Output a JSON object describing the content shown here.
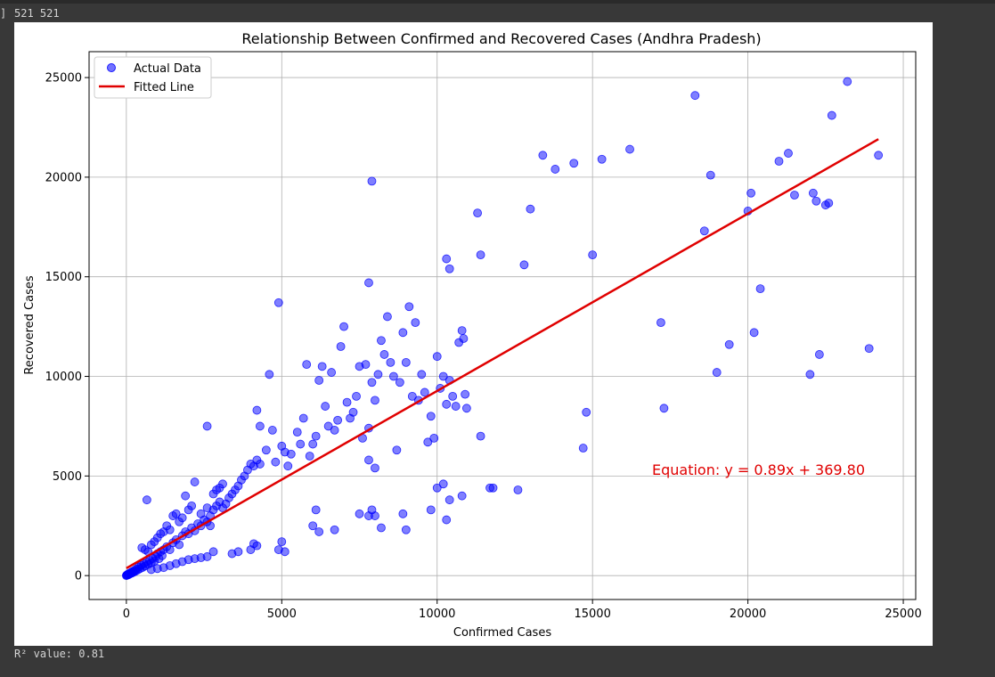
{
  "notebook": {
    "gutter_text": "]",
    "top_output": "521 521",
    "bottom_output": "R² value: 0.81"
  },
  "chart_data": {
    "type": "scatter",
    "title": "Relationship Between Confirmed and Recovered Cases (Andhra Pradesh)",
    "xlabel": "Confirmed Cases",
    "ylabel": "Recovered Cases",
    "xlim": [
      -1200,
      25400
    ],
    "ylim": [
      -1200,
      26300
    ],
    "xticks": [
      0,
      5000,
      10000,
      15000,
      20000,
      25000
    ],
    "yticks": [
      0,
      5000,
      10000,
      15000,
      20000,
      25000
    ],
    "grid": true,
    "legend_position": "top-left",
    "annotation": "Equation: y = 0.89x + 369.80",
    "colors": {
      "points": "#0000ff",
      "line": "#e00000",
      "annotation": "#e00000",
      "grid": "#b0b0b0"
    },
    "series": [
      {
        "name": "Actual Data",
        "kind": "scatter",
        "points": [
          [
            0,
            0
          ],
          [
            10,
            20
          ],
          [
            25,
            40
          ],
          [
            40,
            30
          ],
          [
            60,
            80
          ],
          [
            80,
            50
          ],
          [
            100,
            120
          ],
          [
            120,
            90
          ],
          [
            150,
            160
          ],
          [
            180,
            130
          ],
          [
            200,
            210
          ],
          [
            230,
            170
          ],
          [
            260,
            260
          ],
          [
            290,
            220
          ],
          [
            320,
            330
          ],
          [
            360,
            280
          ],
          [
            400,
            430
          ],
          [
            440,
            350
          ],
          [
            480,
            520
          ],
          [
            520,
            410
          ],
          [
            560,
            600
          ],
          [
            600,
            480
          ],
          [
            650,
            680
          ],
          [
            700,
            560
          ],
          [
            750,
            760
          ],
          [
            800,
            640
          ],
          [
            850,
            860
          ],
          [
            900,
            720
          ],
          [
            950,
            960
          ],
          [
            1000,
            1100
          ],
          [
            1050,
            850
          ],
          [
            1100,
            1200
          ],
          [
            1150,
            1000
          ],
          [
            1200,
            1300
          ],
          [
            1300,
            1450
          ],
          [
            1400,
            1300
          ],
          [
            1500,
            1650
          ],
          [
            1600,
            1800
          ],
          [
            1700,
            1550
          ],
          [
            1800,
            2000
          ],
          [
            1900,
            2200
          ],
          [
            2000,
            2100
          ],
          [
            2100,
            2400
          ],
          [
            2200,
            2250
          ],
          [
            2300,
            2600
          ],
          [
            2400,
            2500
          ],
          [
            2500,
            2800
          ],
          [
            2600,
            2700
          ],
          [
            2700,
            3000
          ],
          [
            2800,
            3300
          ],
          [
            2900,
            3500
          ],
          [
            3000,
            3700
          ],
          [
            3100,
            3400
          ],
          [
            3200,
            3600
          ],
          [
            3300,
            3900
          ],
          [
            3400,
            4100
          ],
          [
            3500,
            4300
          ],
          [
            3600,
            4500
          ],
          [
            3700,
            4800
          ],
          [
            3800,
            5000
          ],
          [
            3900,
            5300
          ],
          [
            4000,
            5600
          ],
          [
            4100,
            5500
          ],
          [
            4200,
            5800
          ],
          [
            4300,
            5600
          ],
          [
            500,
            1400
          ],
          [
            600,
            1300
          ],
          [
            700,
            1200
          ],
          [
            800,
            1550
          ],
          [
            900,
            1700
          ],
          [
            1000,
            1900
          ],
          [
            1100,
            2100
          ],
          [
            1200,
            2200
          ],
          [
            1300,
            2500
          ],
          [
            1400,
            2300
          ],
          [
            1500,
            3000
          ],
          [
            1600,
            3100
          ],
          [
            1700,
            2700
          ],
          [
            1800,
            2900
          ],
          [
            1900,
            4000
          ],
          [
            2000,
            3300
          ],
          [
            2100,
            3500
          ],
          [
            2200,
            4700
          ],
          [
            2400,
            3100
          ],
          [
            2600,
            3400
          ],
          [
            2700,
            2500
          ],
          [
            2800,
            4100
          ],
          [
            2900,
            4300
          ],
          [
            3000,
            4400
          ],
          [
            3100,
            4600
          ],
          [
            660,
            3800
          ],
          [
            2600,
            7500
          ],
          [
            800,
            300
          ],
          [
            1000,
            350
          ],
          [
            1200,
            400
          ],
          [
            1400,
            500
          ],
          [
            1600,
            600
          ],
          [
            1800,
            700
          ],
          [
            2000,
            800
          ],
          [
            2200,
            850
          ],
          [
            2400,
            900
          ],
          [
            2600,
            950
          ],
          [
            2800,
            1200
          ],
          [
            3400,
            1100
          ],
          [
            3600,
            1200
          ],
          [
            4000,
            1300
          ],
          [
            4100,
            1600
          ],
          [
            4200,
            1500
          ],
          [
            4900,
            1300
          ],
          [
            5000,
            1700
          ],
          [
            5100,
            1200
          ],
          [
            4200,
            8300
          ],
          [
            4300,
            7500
          ],
          [
            4500,
            6300
          ],
          [
            4600,
            10100
          ],
          [
            4700,
            7300
          ],
          [
            4800,
            5700
          ],
          [
            4900,
            13700
          ],
          [
            5000,
            6500
          ],
          [
            5100,
            6200
          ],
          [
            5200,
            5500
          ],
          [
            5300,
            6100
          ],
          [
            5500,
            7200
          ],
          [
            5600,
            6600
          ],
          [
            5700,
            7900
          ],
          [
            5800,
            10600
          ],
          [
            5900,
            6000
          ],
          [
            6000,
            6600
          ],
          [
            6100,
            7000
          ],
          [
            6200,
            9800
          ],
          [
            6300,
            10500
          ],
          [
            6400,
            8500
          ],
          [
            6500,
            7500
          ],
          [
            6600,
            10200
          ],
          [
            6700,
            7300
          ],
          [
            6800,
            7800
          ],
          [
            6900,
            11500
          ],
          [
            7000,
            12500
          ],
          [
            7100,
            8700
          ],
          [
            7200,
            7900
          ],
          [
            7300,
            8200
          ],
          [
            7400,
            9000
          ],
          [
            7500,
            10500
          ],
          [
            7600,
            6900
          ],
          [
            7700,
            10600
          ],
          [
            7800,
            7400
          ],
          [
            7900,
            9700
          ],
          [
            8000,
            8800
          ],
          [
            8100,
            10100
          ],
          [
            8200,
            11800
          ],
          [
            8300,
            11100
          ],
          [
            8400,
            13000
          ],
          [
            8500,
            10700
          ],
          [
            8600,
            10000
          ],
          [
            8700,
            6300
          ],
          [
            8800,
            9700
          ],
          [
            8900,
            12200
          ],
          [
            9000,
            10700
          ],
          [
            9100,
            13500
          ],
          [
            9200,
            9000
          ],
          [
            9300,
            12700
          ],
          [
            9400,
            8800
          ],
          [
            9500,
            10100
          ],
          [
            9600,
            9200
          ],
          [
            9700,
            6700
          ],
          [
            9800,
            8000
          ],
          [
            9900,
            6900
          ],
          [
            10000,
            11000
          ],
          [
            10100,
            9400
          ],
          [
            10200,
            10000
          ],
          [
            10300,
            8600
          ],
          [
            10400,
            9800
          ],
          [
            10500,
            9000
          ],
          [
            10600,
            8500
          ],
          [
            10700,
            11700
          ],
          [
            10800,
            12300
          ],
          [
            10850,
            11900
          ],
          [
            10900,
            9100
          ],
          [
            10950,
            8400
          ],
          [
            6100,
            3300
          ],
          [
            6200,
            2200
          ],
          [
            6000,
            2500
          ],
          [
            6700,
            2300
          ],
          [
            7500,
            3100
          ],
          [
            7800,
            3000
          ],
          [
            7900,
            3300
          ],
          [
            8000,
            3000
          ],
          [
            8200,
            2400
          ],
          [
            8900,
            3100
          ],
          [
            9000,
            2300
          ],
          [
            9800,
            3300
          ],
          [
            10000,
            4400
          ],
          [
            10200,
            4600
          ],
          [
            10300,
            2800
          ],
          [
            10400,
            3800
          ],
          [
            10800,
            4000
          ],
          [
            11400,
            7000
          ],
          [
            11700,
            4400
          ],
          [
            11800,
            4400
          ],
          [
            12600,
            4300
          ],
          [
            7800,
            5800
          ],
          [
            8000,
            5400
          ],
          [
            7800,
            14700
          ],
          [
            7900,
            19800
          ],
          [
            10300,
            15900
          ],
          [
            10400,
            15400
          ],
          [
            11300,
            18200
          ],
          [
            11400,
            16100
          ],
          [
            12800,
            15600
          ],
          [
            13000,
            18400
          ],
          [
            13400,
            21100
          ],
          [
            13800,
            20400
          ],
          [
            14400,
            20700
          ],
          [
            14700,
            6400
          ],
          [
            14800,
            8200
          ],
          [
            15000,
            16100
          ],
          [
            15300,
            20900
          ],
          [
            16200,
            21400
          ],
          [
            17200,
            12700
          ],
          [
            17300,
            8400
          ],
          [
            18300,
            24100
          ],
          [
            18600,
            17300
          ],
          [
            18800,
            20100
          ],
          [
            19000,
            10200
          ],
          [
            19400,
            11600
          ],
          [
            20000,
            18300
          ],
          [
            20100,
            19200
          ],
          [
            20200,
            12200
          ],
          [
            20400,
            14400
          ],
          [
            21000,
            20800
          ],
          [
            21300,
            21200
          ],
          [
            21500,
            19100
          ],
          [
            22000,
            10100
          ],
          [
            22100,
            19200
          ],
          [
            22200,
            18800
          ],
          [
            22300,
            11100
          ],
          [
            22500,
            18600
          ],
          [
            22600,
            18700
          ],
          [
            22700,
            23100
          ],
          [
            23200,
            24800
          ],
          [
            23900,
            11400
          ],
          [
            24200,
            21100
          ]
        ]
      },
      {
        "name": "Fitted Line",
        "kind": "line",
        "slope": 0.89,
        "intercept": 369.8,
        "x_range": [
          0,
          24200
        ]
      }
    ]
  }
}
